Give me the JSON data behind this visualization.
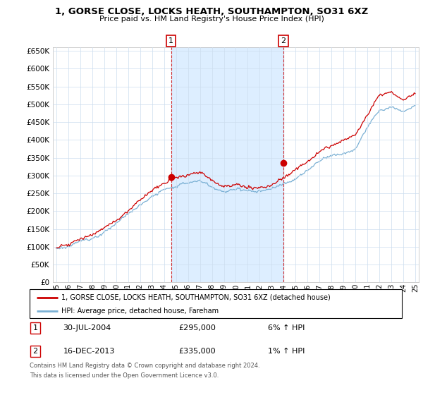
{
  "title": "1, GORSE CLOSE, LOCKS HEATH, SOUTHAMPTON, SO31 6XZ",
  "subtitle": "Price paid vs. HM Land Registry's House Price Index (HPI)",
  "ylim": [
    0,
    660000
  ],
  "yticks": [
    0,
    50000,
    100000,
    150000,
    200000,
    250000,
    300000,
    350000,
    400000,
    450000,
    500000,
    550000,
    600000,
    650000
  ],
  "legend_entry1": "1, GORSE CLOSE, LOCKS HEATH, SOUTHAMPTON, SO31 6XZ (detached house)",
  "legend_entry2": "HPI: Average price, detached house, Fareham",
  "transaction1_label": "1",
  "transaction1_date": "30-JUL-2004",
  "transaction1_price": "£295,000",
  "transaction1_hpi": "6% ↑ HPI",
  "transaction1_x": 2004.58,
  "transaction1_y": 295000,
  "transaction2_label": "2",
  "transaction2_date": "16-DEC-2013",
  "transaction2_price": "£335,000",
  "transaction2_hpi": "1% ↑ HPI",
  "transaction2_x": 2013.96,
  "transaction2_y": 335000,
  "footnote1": "Contains HM Land Registry data © Crown copyright and database right 2024.",
  "footnote2": "This data is licensed under the Open Government Licence v3.0.",
  "line_color_red": "#cc0000",
  "line_color_blue": "#7ab0d4",
  "shade_color": "#ddeeff",
  "grid_color": "#ccddee",
  "background_color": "#ffffff",
  "xlim_left": 1994.7,
  "xlim_right": 2025.3
}
